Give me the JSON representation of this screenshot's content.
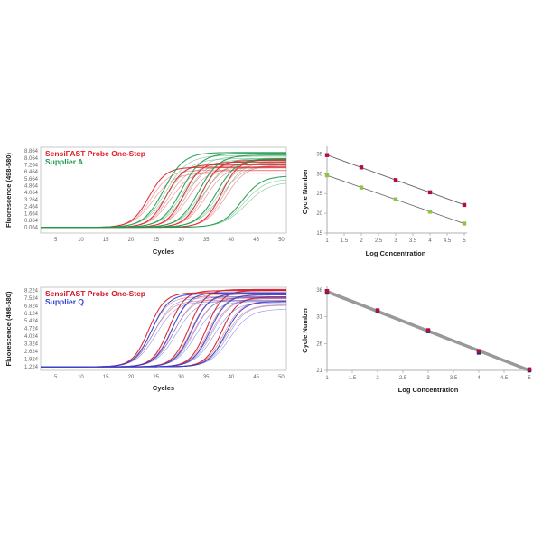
{
  "chart_data": [
    {
      "type": "line",
      "title": "",
      "xlabel": "Cycles",
      "ylabel": "Fluorescence (498-580)",
      "xlim": [
        2,
        51
      ],
      "ylim": [
        -0.6,
        9.3
      ],
      "xticks": [
        5,
        10,
        15,
        20,
        25,
        30,
        35,
        40,
        45,
        50
      ],
      "yticks": [
        "0.064",
        "0.864",
        "1.664",
        "2.464",
        "3.264",
        "4.064",
        "4.864",
        "5.664",
        "6.464",
        "7.264",
        "8.064",
        "8.864"
      ],
      "baseline": 0.064,
      "legend": "top-left",
      "series": [
        {
          "name": "SensiFAST Probe One-Step",
          "color": "#e0202a",
          "curve_model": "sigmoid",
          "midpoint_cycles": [
            24,
            27.5,
            31,
            34.5,
            38.5
          ],
          "plateau": [
            7.0,
            7.3,
            7.6,
            7.8,
            7.9
          ],
          "slope": 1.7,
          "replicates": 3
        },
        {
          "name": "Supplier A",
          "color": "#1f9a4f",
          "curve_model": "sigmoid",
          "midpoint_cycles": [
            27,
            30.5,
            34,
            37.5,
            42.5
          ],
          "plateau": [
            8.7,
            8.6,
            8.4,
            8.0,
            6.0
          ],
          "slope": 2.0,
          "replicates": 3
        }
      ]
    },
    {
      "type": "scatter",
      "xlabel": "Log Concentration",
      "ylabel": "Cycle Number",
      "xlim": [
        1,
        5
      ],
      "ylim": [
        15,
        36
      ],
      "xticks": [
        "1",
        "1.5",
        "2",
        "2.5",
        "3",
        "3.5",
        "4",
        "4.5",
        "5"
      ],
      "yticks": [
        "15",
        "20",
        "25",
        "30",
        "35"
      ],
      "trendline": true,
      "series": [
        {
          "name": "SensiFAST Probe One-Step",
          "color": "#b0103a",
          "x": [
            1,
            2,
            3,
            4,
            5
          ],
          "y": [
            34.7,
            31.6,
            28.4,
            25.3,
            22.1
          ]
        },
        {
          "name": "Supplier A",
          "color": "#8cc63f",
          "x": [
            1,
            2,
            3,
            4,
            5
          ],
          "y": [
            29.6,
            26.5,
            23.5,
            20.4,
            17.4
          ]
        }
      ]
    },
    {
      "type": "line",
      "xlabel": "Cycles",
      "ylabel": "Fluorescence (498-580)",
      "xlim": [
        2,
        51
      ],
      "ylim": [
        0.9,
        8.5
      ],
      "xticks": [
        5,
        10,
        15,
        20,
        25,
        30,
        35,
        40,
        45,
        50
      ],
      "yticks": [
        "1.224",
        "1.924",
        "2.624",
        "3.324",
        "4.024",
        "4.724",
        "5.424",
        "6.124",
        "6.824",
        "7.524",
        "8.224"
      ],
      "baseline": 1.224,
      "legend": "top-left",
      "series": [
        {
          "name": "SensiFAST Probe One-Step",
          "color": "#d01828",
          "curve_model": "sigmoid",
          "midpoint_cycles": [
            24,
            28,
            32,
            35.5,
            38.5
          ],
          "plateau": [
            8.0,
            8.2,
            8.3,
            8.2,
            7.6
          ],
          "slope": 1.6,
          "replicates": 3
        },
        {
          "name": "Supplier Q",
          "color": "#3040d0",
          "curve_model": "sigmoid",
          "midpoint_cycles": [
            24.6,
            28.6,
            32.6,
            36.2,
            39.3
          ],
          "plateau": [
            7.9,
            8.0,
            7.9,
            7.8,
            7.2
          ],
          "slope": 1.7,
          "replicates": 3
        }
      ]
    },
    {
      "type": "scatter",
      "xlabel": "Log Concentration",
      "ylabel": "Cycle Number",
      "xlim": [
        1,
        5
      ],
      "ylim": [
        21,
        36
      ],
      "xticks": [
        "1",
        "1.5",
        "2",
        "2.5",
        "3",
        "3.5",
        "4",
        "4.5",
        "5"
      ],
      "yticks": [
        "21",
        "26",
        "31",
        "36"
      ],
      "trendline": true,
      "series": [
        {
          "name": "Supplier Q",
          "color": "#1a2a80",
          "x": [
            1,
            2,
            3,
            4,
            5
          ],
          "y": [
            35.5,
            32.0,
            28.3,
            24.3,
            21.0
          ]
        },
        {
          "name": "SensiFAST Probe One-Step",
          "color": "#b0103a",
          "x": [
            1,
            2,
            3,
            4,
            5
          ],
          "y": [
            35.8,
            32.2,
            28.5,
            24.6,
            21.2
          ]
        }
      ]
    }
  ]
}
